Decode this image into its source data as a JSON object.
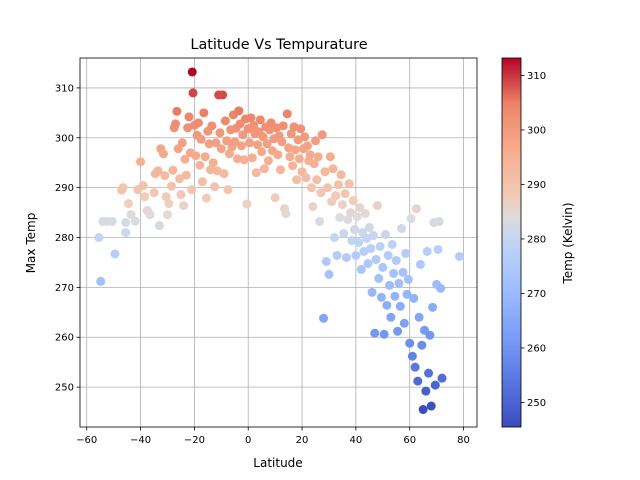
{
  "chart_data": {
    "type": "scatter",
    "title": "Latitude Vs Tempurature",
    "xlabel": "Latitude",
    "ylabel": "Max Temp",
    "xlim": [
      -62.5,
      85
    ],
    "ylim": [
      242,
      316
    ],
    "xticks": [
      -60,
      -40,
      -20,
      0,
      20,
      40,
      60,
      80
    ],
    "yticks": [
      250,
      260,
      270,
      280,
      290,
      300,
      310
    ],
    "grid": true,
    "colorbar": {
      "label": "Temp (Kelvin)",
      "colormap": "coolwarm",
      "range": [
        245.5,
        313.2
      ],
      "ticks": [
        250,
        260,
        270,
        280,
        290,
        300,
        310
      ]
    },
    "points": [
      [
        -54.8,
        271.2
      ],
      [
        -55.5,
        280.0
      ],
      [
        -54.0,
        283.2
      ],
      [
        -52.5,
        283.2
      ],
      [
        -50.5,
        283.2
      ],
      [
        -49.5,
        276.7
      ],
      [
        -47.0,
        289.5
      ],
      [
        -46.5,
        290.0
      ],
      [
        -45.5,
        283.0
      ],
      [
        -45.5,
        281.0
      ],
      [
        -44.5,
        286.8
      ],
      [
        -43.5,
        284.6
      ],
      [
        -42.0,
        283.3
      ],
      [
        -41.0,
        289.6
      ],
      [
        -40.0,
        295.2
      ],
      [
        -39.0,
        290.4
      ],
      [
        -38.5,
        288.2
      ],
      [
        -37.5,
        285.4
      ],
      [
        -36.5,
        284.6
      ],
      [
        -35.0,
        289.0
      ],
      [
        -34.5,
        292.8
      ],
      [
        -33.5,
        293.4
      ],
      [
        -33.0,
        282.4
      ],
      [
        -32.5,
        297.8
      ],
      [
        -31.5,
        296.8
      ],
      [
        -31.0,
        292.4
      ],
      [
        -30.5,
        288.2
      ],
      [
        -30.0,
        284.6
      ],
      [
        -29.5,
        286.8
      ],
      [
        -28.5,
        290.3
      ],
      [
        -28.0,
        293.5
      ],
      [
        -27.5,
        302.0
      ],
      [
        -27.0,
        302.8
      ],
      [
        -26.5,
        305.3
      ],
      [
        -26.0,
        297.8
      ],
      [
        -25.5,
        291.8
      ],
      [
        -25.0,
        288.6
      ],
      [
        -24.5,
        299.0
      ],
      [
        -24.0,
        286.4
      ],
      [
        -23.5,
        295.7
      ],
      [
        -23.0,
        292.5
      ],
      [
        -22.5,
        302.0
      ],
      [
        -22.0,
        304.2
      ],
      [
        -21.5,
        297.0
      ],
      [
        -21.0,
        289.6
      ],
      [
        -20.8,
        313.2
      ],
      [
        -20.5,
        309.0
      ],
      [
        -20.0,
        302.5
      ],
      [
        -19.5,
        296.4
      ],
      [
        -19.0,
        300.5
      ],
      [
        -18.5,
        303.0
      ],
      [
        -18.0,
        294.5
      ],
      [
        -17.5,
        299.7
      ],
      [
        -17.0,
        291.2
      ],
      [
        -16.5,
        305.0
      ],
      [
        -16.0,
        296.2
      ],
      [
        -15.5,
        287.9
      ],
      [
        -15.0,
        301.3
      ],
      [
        -14.5,
        298.8
      ],
      [
        -14.0,
        293.6
      ],
      [
        -13.5,
        302.4
      ],
      [
        -13.0,
        295.0
      ],
      [
        -12.5,
        290.2
      ],
      [
        -12.0,
        299.0
      ],
      [
        -11.5,
        293.4
      ],
      [
        -11.0,
        308.6
      ],
      [
        -10.5,
        301.0
      ],
      [
        -10.0,
        297.8
      ],
      [
        -9.5,
        308.6
      ],
      [
        -9.0,
        292.8
      ],
      [
        -8.5,
        303.4
      ],
      [
        -8.0,
        299.4
      ],
      [
        -7.5,
        289.6
      ],
      [
        -7.0,
        296.8
      ],
      [
        -6.5,
        301.6
      ],
      [
        -6.0,
        298.2
      ],
      [
        -5.5,
        304.6
      ],
      [
        -5.0,
        299.2
      ],
      [
        -4.5,
        301.9
      ],
      [
        -4.0,
        295.8
      ],
      [
        -3.5,
        305.4
      ],
      [
        -3.0,
        302.8
      ],
      [
        -2.5,
        298.4
      ],
      [
        -2.0,
        300.6
      ],
      [
        -1.5,
        295.6
      ],
      [
        -1.0,
        303.8
      ],
      [
        -0.5,
        286.7
      ],
      [
        0.0,
        301.8
      ],
      [
        0.5,
        299.0
      ],
      [
        1.0,
        304.0
      ],
      [
        1.5,
        296.0
      ],
      [
        2.0,
        302.5
      ],
      [
        2.5,
        300.8
      ],
      [
        3.0,
        293.0
      ],
      [
        3.5,
        298.6
      ],
      [
        4.0,
        301.2
      ],
      [
        4.5,
        303.6
      ],
      [
        5.0,
        297.2
      ],
      [
        5.5,
        300.2
      ],
      [
        6.0,
        293.8
      ],
      [
        6.5,
        302.2
      ],
      [
        7.0,
        298.8
      ],
      [
        7.5,
        295.4
      ],
      [
        8.0,
        301.6
      ],
      [
        8.5,
        303.0
      ],
      [
        9.0,
        297.4
      ],
      [
        9.5,
        299.8
      ],
      [
        10.0,
        288.0
      ],
      [
        10.5,
        302.0
      ],
      [
        11.0,
        296.6
      ],
      [
        11.5,
        300.4
      ],
      [
        12.0,
        293.6
      ],
      [
        12.5,
        299.2
      ],
      [
        13.0,
        302.4
      ],
      [
        13.5,
        285.8
      ],
      [
        14.0,
        284.8
      ],
      [
        14.5,
        304.8
      ],
      [
        15.0,
        298.0
      ],
      [
        15.5,
        296.2
      ],
      [
        16.0,
        300.8
      ],
      [
        16.5,
        294.4
      ],
      [
        17.0,
        302.2
      ],
      [
        17.5,
        297.6
      ],
      [
        18.0,
        291.6
      ],
      [
        18.5,
        299.6
      ],
      [
        19.0,
        295.8
      ],
      [
        19.5,
        301.8
      ],
      [
        20.0,
        293.2
      ],
      [
        20.5,
        297.8
      ],
      [
        21.0,
        300.2
      ],
      [
        21.5,
        292.0
      ],
      [
        22.0,
        298.4
      ],
      [
        22.5,
        295.4
      ],
      [
        23.0,
        296.6
      ],
      [
        23.5,
        290.0
      ],
      [
        24.0,
        286.2
      ],
      [
        24.5,
        294.8
      ],
      [
        25.0,
        299.4
      ],
      [
        25.5,
        291.6
      ],
      [
        26.0,
        296.2
      ],
      [
        26.5,
        283.2
      ],
      [
        27.0,
        289.0
      ],
      [
        27.5,
        300.6
      ],
      [
        28.0,
        263.8
      ],
      [
        28.5,
        293.2
      ],
      [
        29.0,
        275.2
      ],
      [
        29.5,
        290.0
      ],
      [
        30.0,
        272.6
      ],
      [
        30.5,
        296.2
      ],
      [
        31.0,
        287.2
      ],
      [
        31.5,
        293.8
      ],
      [
        32.0,
        280.0
      ],
      [
        32.5,
        288.4
      ],
      [
        33.0,
        276.4
      ],
      [
        33.5,
        290.6
      ],
      [
        34.0,
        284.0
      ],
      [
        34.5,
        292.6
      ],
      [
        35.0,
        286.6
      ],
      [
        35.5,
        280.8
      ],
      [
        36.0,
        288.8
      ],
      [
        36.5,
        276.0
      ],
      [
        37.0,
        283.6
      ],
      [
        37.5,
        290.8
      ],
      [
        38.0,
        285.0
      ],
      [
        38.5,
        279.4
      ],
      [
        39.0,
        287.4
      ],
      [
        39.5,
        281.6
      ],
      [
        40.0,
        276.4
      ],
      [
        40.5,
        284.2
      ],
      [
        41.0,
        279.0
      ],
      [
        41.5,
        286.0
      ],
      [
        42.0,
        273.6
      ],
      [
        42.5,
        281.0
      ],
      [
        43.0,
        277.2
      ],
      [
        43.5,
        284.8
      ],
      [
        44.0,
        279.8
      ],
      [
        44.5,
        274.8
      ],
      [
        45.0,
        282.0
      ],
      [
        45.5,
        277.8
      ],
      [
        46.0,
        269.0
      ],
      [
        46.5,
        280.4
      ],
      [
        47.0,
        260.8
      ],
      [
        47.5,
        275.6
      ],
      [
        48.0,
        286.4
      ],
      [
        48.5,
        271.8
      ],
      [
        49.0,
        278.2
      ],
      [
        49.5,
        268.0
      ],
      [
        50.0,
        274.0
      ],
      [
        50.5,
        260.6
      ],
      [
        51.0,
        280.6
      ],
      [
        51.5,
        266.4
      ],
      [
        52.0,
        276.4
      ],
      [
        52.5,
        270.4
      ],
      [
        53.0,
        264.0
      ],
      [
        53.5,
        278.6
      ],
      [
        54.0,
        272.8
      ],
      [
        54.5,
        268.2
      ],
      [
        55.0,
        275.4
      ],
      [
        55.5,
        261.2
      ],
      [
        56.0,
        270.8
      ],
      [
        56.5,
        266.2
      ],
      [
        57.0,
        281.8
      ],
      [
        57.5,
        273.0
      ],
      [
        58.0,
        262.8
      ],
      [
        58.5,
        276.8
      ],
      [
        59.0,
        268.6
      ],
      [
        59.5,
        271.6
      ],
      [
        60.0,
        258.8
      ],
      [
        60.5,
        283.8
      ],
      [
        61.0,
        256.2
      ],
      [
        61.5,
        267.8
      ],
      [
        62.0,
        254.0
      ],
      [
        62.5,
        285.8
      ],
      [
        63.0,
        251.2
      ],
      [
        63.5,
        264.0
      ],
      [
        64.0,
        274.6
      ],
      [
        64.5,
        258.4
      ],
      [
        65.0,
        245.5
      ],
      [
        65.5,
        261.4
      ],
      [
        66.0,
        249.2
      ],
      [
        66.5,
        277.2
      ],
      [
        67.0,
        252.8
      ],
      [
        67.5,
        260.4
      ],
      [
        68.0,
        246.2
      ],
      [
        68.5,
        266.0
      ],
      [
        69.0,
        283.0
      ],
      [
        69.5,
        250.4
      ],
      [
        70.0,
        270.6
      ],
      [
        70.5,
        277.6
      ],
      [
        71.0,
        283.2
      ],
      [
        71.5,
        269.8
      ],
      [
        72.0,
        251.8
      ],
      [
        78.5,
        276.2
      ]
    ]
  }
}
